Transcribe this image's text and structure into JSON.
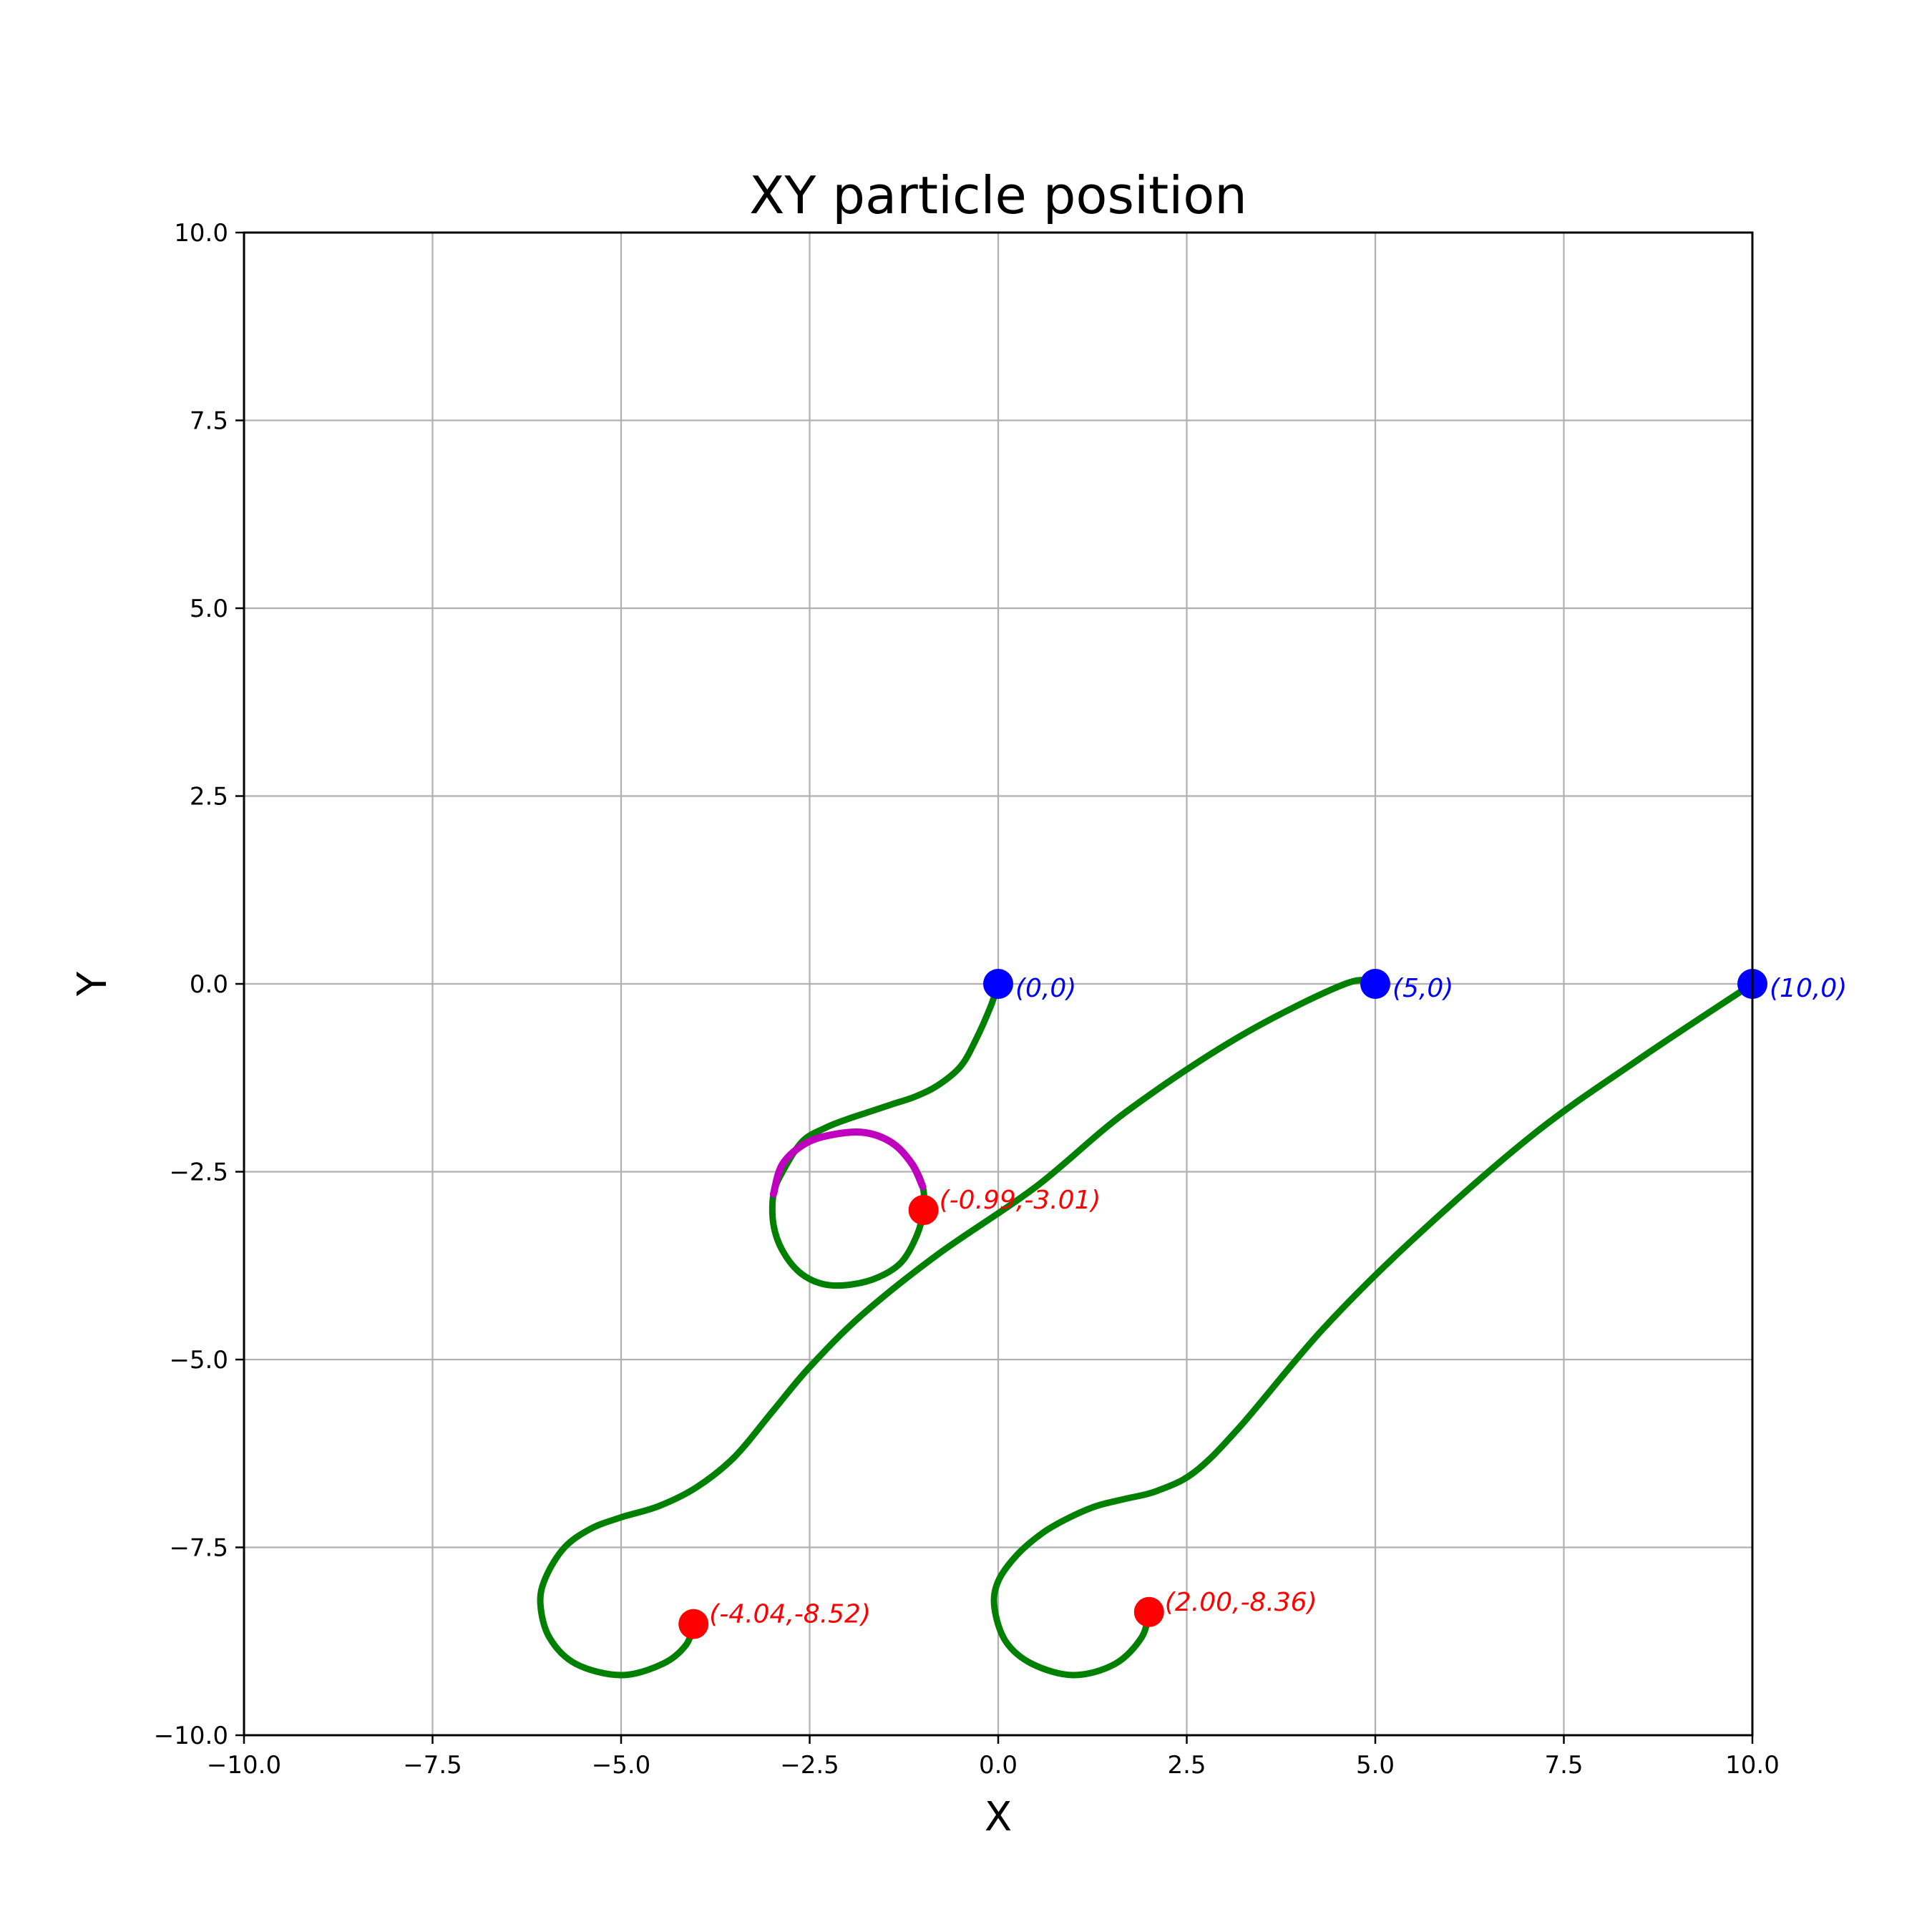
{
  "chart_data": {
    "type": "line",
    "title": "XY particle position",
    "xlabel": "X",
    "ylabel": "Y",
    "xlim": [
      -10,
      10
    ],
    "ylim": [
      -10,
      10
    ],
    "xticks": [
      -10,
      -7.5,
      -5,
      -2.5,
      0,
      2.5,
      5,
      7.5,
      10
    ],
    "yticks": [
      -10,
      -7.5,
      -5,
      -2.5,
      0,
      2.5,
      5,
      7.5,
      10
    ],
    "xtick_labels": [
      "−10.0",
      "−7.5",
      "−5.0",
      "−2.5",
      "0.0",
      "2.5",
      "5.0",
      "7.5",
      "10.0"
    ],
    "ytick_labels": [
      "−10.0",
      "−7.5",
      "−5.0",
      "−2.5",
      "0.0",
      "2.5",
      "5.0",
      "7.5",
      "10.0"
    ],
    "grid": true,
    "colors": {
      "trajectory": "#008000",
      "highlight_orbit": "#bf00bf",
      "start_point": "#0000ff",
      "end_point": "#ff0000",
      "grid": "#b0b0b0"
    },
    "series": [
      {
        "x": [
          0,
          -0.1,
          -0.3,
          -0.5,
          -0.8,
          -1.1,
          -1.4,
          -1.7,
          -2.0,
          -2.3,
          -2.6,
          -2.86,
          -2.98,
          -2.98,
          -2.86,
          -2.62,
          -2.3,
          -1.94,
          -1.58,
          -1.28,
          -1.08,
          -0.99,
          -1.0,
          -1.14,
          -1.4,
          -1.76,
          -2.16,
          -2.55,
          -2.86,
          -2.98
        ],
        "y": [
          0,
          -0.3,
          -0.75,
          -1.1,
          -1.35,
          -1.5,
          -1.6,
          -1.7,
          -1.8,
          -1.92,
          -2.1,
          -2.5,
          -2.8,
          -3.2,
          -3.55,
          -3.85,
          -4.0,
          -4.0,
          -3.9,
          -3.7,
          -3.35,
          -3.01,
          -2.7,
          -2.4,
          -2.12,
          -1.98,
          -2.0,
          -2.12,
          -2.4,
          -2.8
        ],
        "highlight_from_index": 22
      },
      {
        "x": [
          5,
          4.6,
          3.2,
          1.7,
          0.5,
          -0.8,
          -1.8,
          -2.5,
          -3.0,
          -3.5,
          -4.0,
          -4.5,
          -5.0,
          -5.4,
          -5.75,
          -6.0,
          -6.07,
          -5.95,
          -5.6,
          -5.0,
          -4.45,
          -4.14,
          -4.04
        ],
        "y": [
          0,
          0,
          -0.7,
          -1.7,
          -2.7,
          -3.6,
          -4.4,
          -5.1,
          -5.7,
          -6.3,
          -6.7,
          -6.95,
          -7.1,
          -7.25,
          -7.5,
          -7.9,
          -8.25,
          -8.7,
          -9.05,
          -9.2,
          -9.05,
          -8.8,
          -8.52
        ],
        "highlight_from_index": null
      },
      {
        "x": [
          10,
          8.5,
          7.1,
          5.5,
          4.3,
          3.2,
          2.6,
          2.1,
          1.7,
          1.3,
          0.95,
          0.6,
          0.25,
          0.0,
          -0.05,
          0.1,
          0.45,
          1.0,
          1.55,
          1.9,
          2.0
        ],
        "y": [
          0,
          -1.0,
          -2.0,
          -3.4,
          -4.6,
          -5.9,
          -6.5,
          -6.75,
          -6.85,
          -6.95,
          -7.1,
          -7.3,
          -7.6,
          -7.95,
          -8.3,
          -8.75,
          -9.05,
          -9.2,
          -9.05,
          -8.7,
          -8.36
        ],
        "highlight_from_index": null
      }
    ],
    "start_points": [
      {
        "x": 0,
        "y": 0,
        "label": "(0,0)"
      },
      {
        "x": 5,
        "y": 0,
        "label": "(5,0)"
      },
      {
        "x": 10,
        "y": 0,
        "label": "(10,0)"
      }
    ],
    "end_points": [
      {
        "x": -0.99,
        "y": -3.01,
        "label": "(-0.99,-3.01)"
      },
      {
        "x": -4.04,
        "y": -8.52,
        "label": "(-4.04,-8.52)"
      },
      {
        "x": 2.0,
        "y": -8.36,
        "label": "(2.00,-8.36)"
      }
    ]
  }
}
